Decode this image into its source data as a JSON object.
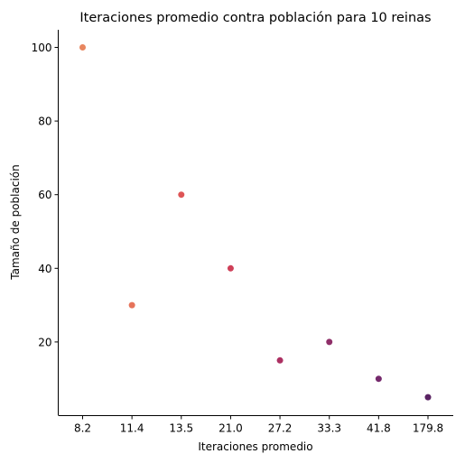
{
  "chart_data": {
    "type": "scatter",
    "title": "Iteraciones promedio contra población para 10 reinas",
    "xlabel": "Iteraciones promedio",
    "ylabel": "Tamaño de población",
    "x_scale": "categorical",
    "categories": [
      "8.2",
      "11.4",
      "13.5",
      "21.0",
      "27.2",
      "33.3",
      "41.8",
      "179.8"
    ],
    "points": [
      {
        "x": "8.2",
        "y": 100,
        "color": "#e8865f"
      },
      {
        "x": "11.4",
        "y": 30,
        "color": "#e6735a"
      },
      {
        "x": "13.5",
        "y": 60,
        "color": "#de5556"
      },
      {
        "x": "21.0",
        "y": 40,
        "color": "#cf3f58"
      },
      {
        "x": "27.2",
        "y": 15,
        "color": "#ac3062"
      },
      {
        "x": "33.3",
        "y": 20,
        "color": "#8f2f69"
      },
      {
        "x": "41.8",
        "y": 10,
        "color": "#75296c"
      },
      {
        "x": "179.8",
        "y": 5,
        "color": "#5a2363"
      }
    ],
    "y_ticks": [
      20,
      40,
      60,
      80,
      100
    ],
    "ylim": [
      0,
      105
    ],
    "grid": false,
    "legend": "none"
  }
}
